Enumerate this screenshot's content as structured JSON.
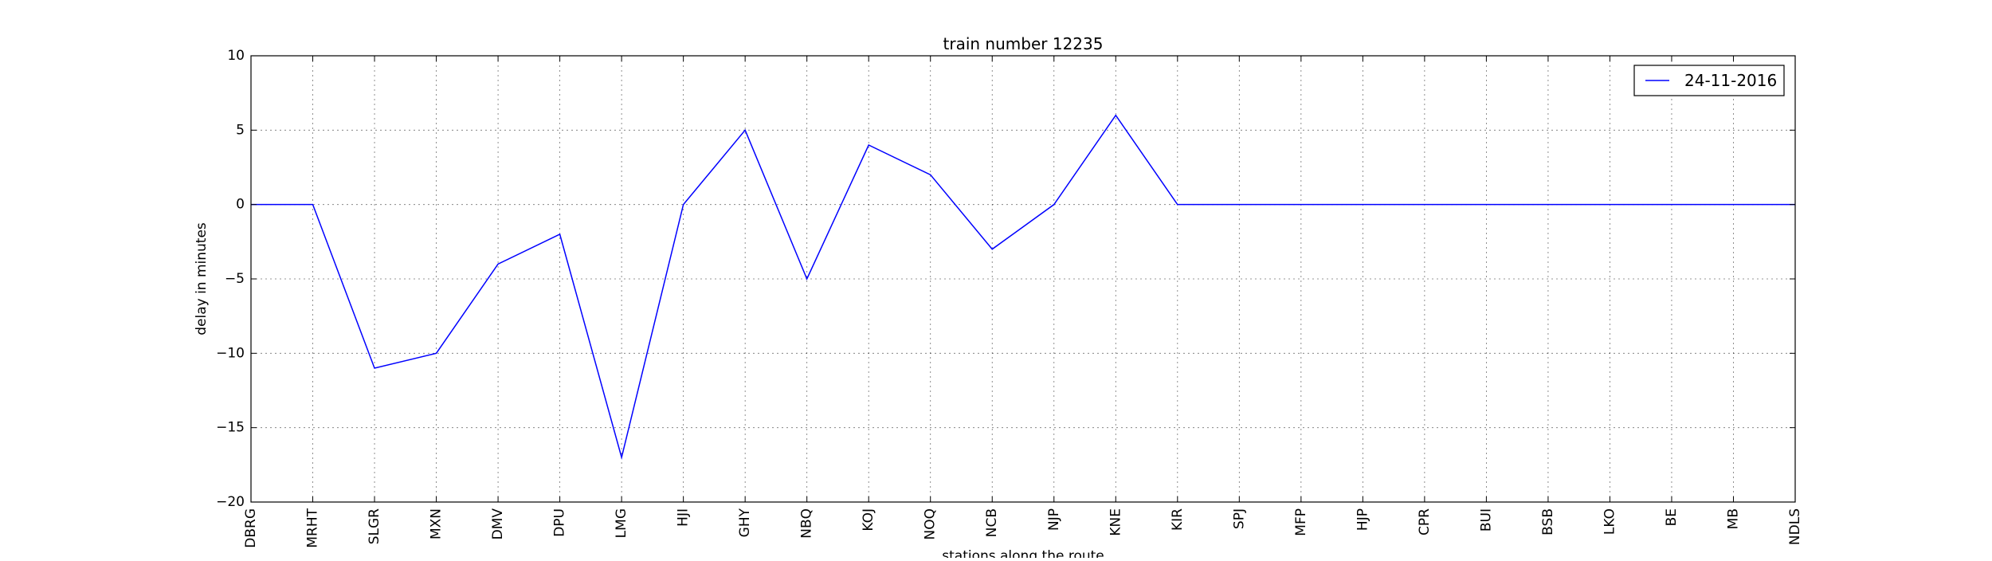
{
  "chart_data": {
    "type": "line",
    "title": "train number 12235",
    "xlabel": "stations along the route",
    "ylabel": "delay in minutes",
    "categories": [
      "DBRG",
      "MRHT",
      "SLGR",
      "MXN",
      "DMV",
      "DPU",
      "LMG",
      "HJI",
      "GHY",
      "NBQ",
      "KOJ",
      "NOQ",
      "NCB",
      "NJP",
      "KNE",
      "KIR",
      "SPJ",
      "MFP",
      "HJP",
      "CPR",
      "BUI",
      "BSB",
      "LKO",
      "BE",
      "MB",
      "NDLS"
    ],
    "series": [
      {
        "name": "24-11-2016",
        "color": "#0000ff",
        "values": [
          0,
          0,
          -11,
          -10,
          -4,
          -2,
          -17,
          0,
          5,
          -5,
          4,
          2,
          -3,
          0,
          6,
          0,
          0,
          0,
          0,
          0,
          0,
          0,
          0,
          0,
          0,
          0
        ]
      }
    ],
    "ylim": [
      -20,
      10
    ],
    "yticks": [
      -20,
      -15,
      -10,
      -5,
      0,
      5,
      10
    ],
    "ytick_labels": [
      "−20",
      "−15",
      "−10",
      "−5",
      "0",
      "5",
      "10"
    ],
    "grid": true,
    "legend_position": "top-right"
  }
}
